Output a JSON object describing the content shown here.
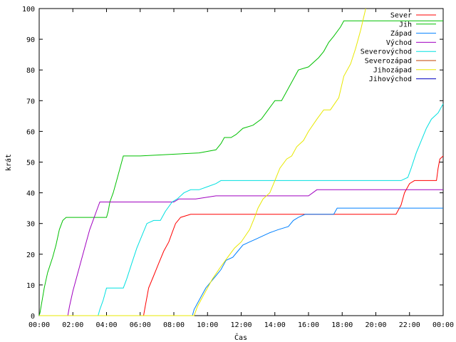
{
  "chart_data": {
    "type": "line",
    "title": "",
    "xlabel": "Čas",
    "ylabel": "krát",
    "xlim": [
      0,
      24
    ],
    "ylim": [
      0,
      100
    ],
    "grid": false,
    "legend_position": "top-right",
    "x_tick_labels": [
      "00:00",
      "02:00",
      "04:00",
      "06:00",
      "08:00",
      "10:00",
      "12:00",
      "14:00",
      "16:00",
      "18:00",
      "20:00",
      "22:00",
      "00:00"
    ],
    "y_tick_labels": [
      "0",
      "10",
      "20",
      "30",
      "40",
      "50",
      "60",
      "70",
      "80",
      "90",
      "100"
    ],
    "series": [
      {
        "name": "Sever",
        "color": "#ff0000",
        "x": [
          0,
          6.2,
          6.3,
          6.5,
          6.8,
          7.1,
          7.4,
          7.7,
          7.9,
          8.1,
          8.4,
          9.0,
          10.0,
          12.0,
          14.0,
          16.0,
          18.0,
          20.0,
          21.2,
          21.5,
          21.7,
          22.0,
          22.3,
          22.6,
          23.0,
          23.3,
          23.6,
          23.7,
          23.8,
          24.0
        ],
        "y": [
          0,
          0,
          3,
          9,
          13,
          17,
          21,
          24,
          27,
          30,
          32,
          33,
          33,
          33,
          33,
          33,
          33,
          33,
          33,
          36,
          40,
          43,
          44,
          44,
          44,
          44,
          44,
          48,
          51,
          52
        ]
      },
      {
        "name": "Jih",
        "color": "#00c000",
        "x": [
          0,
          0.05,
          0.3,
          0.5,
          0.8,
          1.0,
          1.2,
          1.4,
          1.6,
          3.0,
          4.0,
          4.1,
          4.2,
          4.4,
          4.6,
          4.8,
          5.0,
          6.0,
          9.5,
          10.5,
          10.8,
          11.0,
          11.4,
          11.7,
          12.1,
          12.7,
          13.2,
          13.6,
          14.0,
          14.4,
          15.0,
          15.4,
          16.0,
          16.6,
          16.9,
          17.2,
          17.5,
          17.9,
          18.1,
          18.6,
          24.0
        ],
        "y": [
          0,
          1,
          9,
          14,
          19,
          23,
          28,
          31,
          32,
          32,
          32,
          34,
          37,
          40,
          44,
          48,
          52,
          52,
          53,
          54,
          56,
          58,
          58,
          59,
          61,
          62,
          64,
          67,
          70,
          70,
          76,
          80,
          81,
          84,
          86,
          89,
          91,
          94,
          96,
          96,
          96
        ]
      },
      {
        "name": "Západ",
        "color": "#0080ff",
        "x": [
          0,
          9.1,
          9.2,
          9.4,
          9.6,
          9.9,
          10.2,
          10.5,
          10.8,
          11.1,
          11.5,
          11.8,
          12.1,
          12.5,
          12.9,
          13.3,
          13.7,
          14.2,
          14.8,
          15.1,
          15.4,
          15.8,
          16.2,
          17.0,
          17.5,
          17.7,
          18.5,
          20.0,
          21.0,
          24.0
        ],
        "y": [
          0,
          0,
          2,
          4,
          6,
          9,
          11,
          13,
          15,
          18,
          19,
          21,
          23,
          24,
          25,
          26,
          27,
          28,
          29,
          31,
          32,
          33,
          33,
          33,
          33,
          35,
          35,
          35,
          35,
          35
        ]
      },
      {
        "name": "Východ",
        "color": "#a000c0",
        "x": [
          0,
          1.7,
          1.8,
          2.0,
          2.2,
          2.4,
          2.6,
          2.8,
          3.0,
          3.2,
          3.4,
          3.6,
          5.0,
          6.0,
          7.0,
          8.0,
          8.3,
          8.8,
          9.3,
          10.5,
          12.5,
          13.5,
          14.0,
          16.0,
          16.5,
          18.0,
          20.0,
          22.0,
          24.0
        ],
        "y": [
          0,
          0,
          3,
          8,
          12,
          16,
          20,
          24,
          28,
          31,
          34,
          37,
          37,
          37,
          37,
          37,
          38,
          38,
          38,
          39,
          39,
          39,
          39,
          39,
          41,
          41,
          41,
          41,
          41
        ]
      },
      {
        "name": "Severovýchod",
        "color": "#00e0e0",
        "x": [
          0,
          3.5,
          3.6,
          3.8,
          4.0,
          4.5,
          5.0,
          5.2,
          5.5,
          5.8,
          6.1,
          6.4,
          6.8,
          7.2,
          7.5,
          7.9,
          8.2,
          8.6,
          9.0,
          9.5,
          10.0,
          10.5,
          10.8,
          12.0,
          14.0,
          16.0,
          18.0,
          20.0,
          21.5,
          21.9,
          22.1,
          22.4,
          22.7,
          23.0,
          23.3,
          23.7,
          24.0
        ],
        "y": [
          0,
          0,
          2,
          5,
          9,
          9,
          9,
          12,
          17,
          22,
          26,
          30,
          31,
          31,
          34,
          37,
          38,
          40,
          41,
          41,
          42,
          43,
          44,
          44,
          44,
          44,
          44,
          44,
          44,
          45,
          48,
          53,
          57,
          61,
          64,
          66,
          69
        ]
      },
      {
        "name": "Severozápad",
        "color": "#c04000",
        "x": [],
        "y": []
      },
      {
        "name": "Jihozápad",
        "color": "#e8e800",
        "x": [
          0,
          9.2,
          9.4,
          9.8,
          10.3,
          10.8,
          11.2,
          11.6,
          12.0,
          12.5,
          12.8,
          13.0,
          13.3,
          13.7,
          14.0,
          14.3,
          14.7,
          15.0,
          15.3,
          15.7,
          16.0,
          16.5,
          16.9,
          17.3,
          17.8,
          18.1,
          18.5,
          18.8,
          19.1,
          19.4
        ],
        "y": [
          0,
          0,
          3,
          7,
          12,
          16,
          19,
          22,
          24,
          28,
          32,
          35,
          38,
          40,
          44,
          48,
          51,
          52,
          55,
          57,
          60,
          64,
          67,
          67,
          71,
          78,
          82,
          87,
          93,
          100
        ]
      },
      {
        "name": "Jihovýchod",
        "color": "#0000c0",
        "x": [],
        "y": []
      }
    ]
  }
}
